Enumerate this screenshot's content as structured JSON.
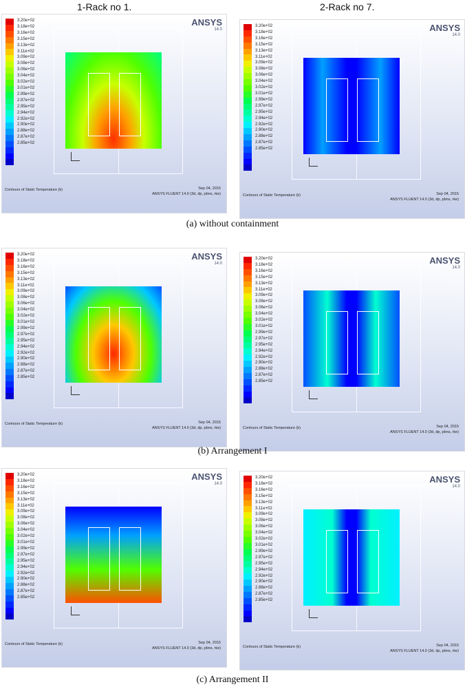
{
  "headers": {
    "left": "1-Rack no 1.",
    "right": "2-Rack no 7."
  },
  "legend_colors": [
    "#e00000",
    "#ff2800",
    "#ff5000",
    "#ff7800",
    "#ffa000",
    "#ffc800",
    "#f0f000",
    "#c8ff00",
    "#a0ff00",
    "#78ff00",
    "#50ff00",
    "#28ff28",
    "#00ff50",
    "#00ff78",
    "#00ffa0",
    "#00ffd0",
    "#00f0ff",
    "#00c8ff",
    "#00a0ff",
    "#0078ff",
    "#0050ff",
    "#0028ff",
    "#0000ff",
    "#0000c8"
  ],
  "legend_values": [
    "3.20e+02",
    "3.18e+02",
    "3.16e+02",
    "3.15e+02",
    "3.13e+02",
    "3.11e+02",
    "3.09e+02",
    "3.08e+02",
    "3.06e+02",
    "3.04e+02",
    "3.02e+02",
    "3.01e+02",
    "2.99e+02",
    "2.97e+02",
    "2.95e+02",
    "2.94e+02",
    "2.92e+02",
    "2.90e+02",
    "2.88e+02",
    "2.87e+02",
    "2.85e+02"
  ],
  "logo": "ANSYS",
  "logo_version": "14.0",
  "contour_label": "Contours of Static Temperature (k)",
  "date": "Sep 04, 2015",
  "solver": "ANSYS FLUENT 14.0 (3d, dp, pbns, rke)",
  "captions": [
    "(a) without containment",
    "(b) Arrangement I",
    "(c) Arrangement II"
  ]
}
